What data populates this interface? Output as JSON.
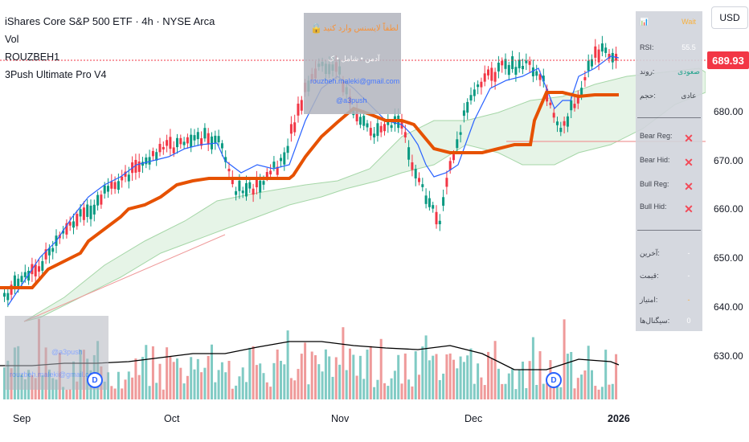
{
  "legend": {
    "title": "iShares Core S&P 500 ETF · 4h · NYSE Arca",
    "vol": "Vol",
    "indicator1": "ROUZBEH1",
    "indicator2": "3Push Ultimate Pro V4"
  },
  "price_scale": {
    "currency": "USD",
    "last_price": "689.93",
    "ticks": [
      "680.00",
      "670.00",
      "660.00",
      "650.00",
      "640.00",
      "630.00"
    ]
  },
  "time_axis": {
    "labels": [
      "Sep",
      "Oct",
      "Nov",
      "Dec",
      "2026"
    ]
  },
  "overlay_top": {
    "line1": "لطفاً لایسنس وارد کنید",
    "line2": "آدمن • شامل • ک",
    "line3": "rouzbeh.maleki@gmail.com",
    "line4": "@a3push"
  },
  "overlay_bottom": {
    "line1": "@a3push",
    "line2": "rouzbeh.maleki@gmail.com"
  },
  "panel": {
    "header_right": "Wait",
    "rsi_label": "RSI:",
    "rsi_value": "55.5",
    "row2_label": "روند:",
    "row2_value": "صعودی",
    "row3_label": "حجم:",
    "row3_value": "عادی",
    "div_rows": [
      {
        "label": "Bear Reg:",
        "mark": "✕"
      },
      {
        "label": "Bear Hid:",
        "mark": "✕"
      },
      {
        "label": "Bull Reg:",
        "mark": "✕"
      },
      {
        "label": "Bull Hid:",
        "mark": "✕"
      }
    ],
    "bottom_rows": [
      {
        "label": "آخرین:",
        "value": "-"
      },
      {
        "label": "قیمت:",
        "value": "-"
      },
      {
        "label": "امتیاز:",
        "value": "-"
      },
      {
        "label": "سیگنال‌ها:",
        "value": "0"
      }
    ]
  },
  "badges": {
    "dividend": "D"
  },
  "colors": {
    "bull": "#089981",
    "bear": "#f23645",
    "orange_line": "#e65100",
    "blue_line": "#2962ff",
    "cloud_green": "#c8e6c9",
    "cloud_red": "#ffcdd2",
    "vol_bull": "#80cbc4",
    "vol_bear": "#ef9a9a",
    "vol_ma": "#000000"
  }
}
